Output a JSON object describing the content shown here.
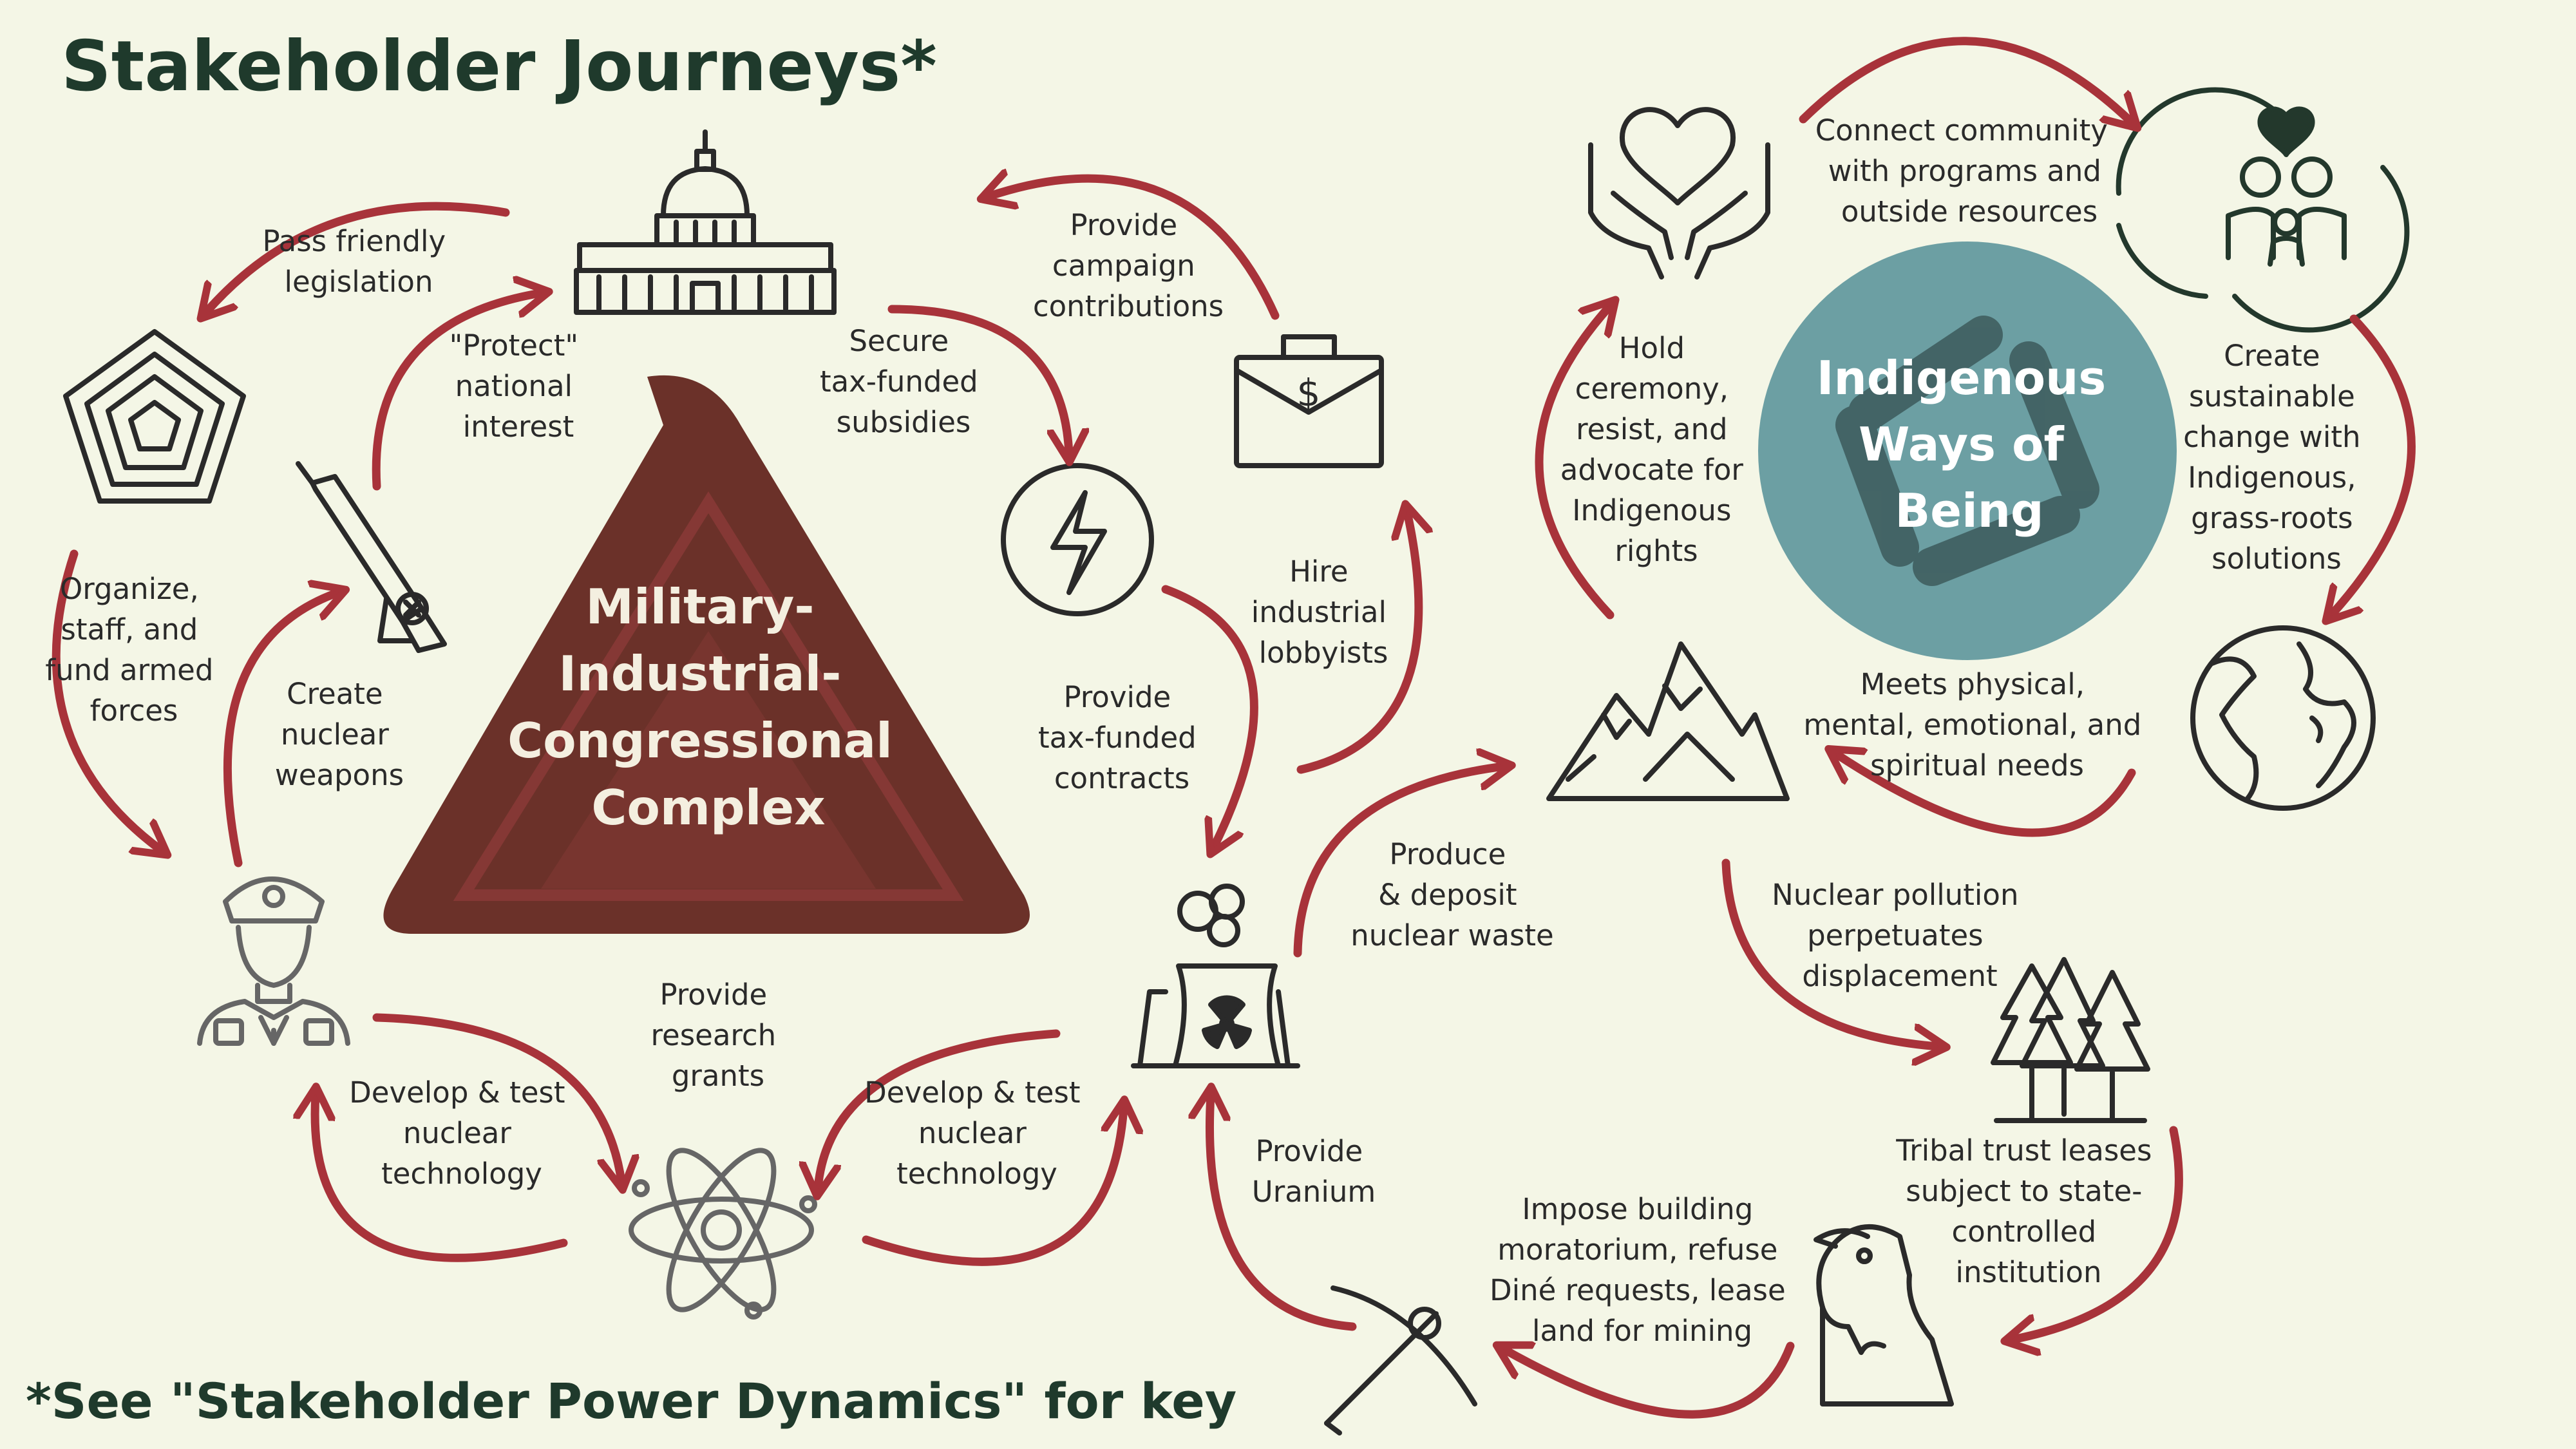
{
  "title": "Stakeholder Journeys*",
  "footnote": "*See \"Stakeholder Power Dynamics\" for key",
  "center": {
    "lines": [
      "Military-",
      "Industrial-",
      "Congressional",
      "Complex"
    ]
  },
  "indigenous": {
    "lines": [
      "Indigenous",
      "Ways of",
      "Being"
    ]
  },
  "colors": {
    "arrow": "#a8333a",
    "triangle": "#6b3129",
    "circle": "#6c9fa3",
    "background": "#f4f6e6",
    "title": "#1f3a2c"
  },
  "icons": [
    "capitol-icon",
    "pentagon-icon",
    "missile-icon",
    "soldier-icon",
    "atom-icon",
    "power-plant-icon",
    "lightning-icon",
    "briefcase-icon",
    "heart-hands-icon",
    "family-icon",
    "earth-icon",
    "mountains-icon",
    "trees-icon",
    "eagle-icon",
    "pickaxe-icon",
    "hands-circle-icon"
  ],
  "labels": {
    "pass_friendly": [
      "Pass friendly",
      "legislation"
    ],
    "protect": [
      "\"Protect\"",
      "national",
      "interest"
    ],
    "secure": [
      "Secure",
      "tax-funded",
      "subsidies"
    ],
    "campaign": [
      "Provide",
      "campaign",
      "contributions"
    ],
    "organize": [
      "Organize,",
      "staff, and",
      "fund armed",
      "forces"
    ],
    "create_nuclear": [
      "Create",
      "nuclear",
      "weapons"
    ],
    "hire": [
      "Hire",
      "industrial",
      "lobbyists"
    ],
    "contracts": [
      "Provide",
      "tax-funded",
      "contracts"
    ],
    "research": [
      "Provide",
      "research",
      "grants"
    ],
    "develop_left": [
      "Develop & test",
      "nuclear",
      "technology"
    ],
    "develop_right": [
      "Develop & test",
      "nuclear",
      "technology"
    ],
    "produce": [
      "Produce",
      "& deposit",
      "nuclear waste"
    ],
    "uranium": [
      "Provide",
      "Uranium"
    ],
    "impose": [
      "Impose building",
      "moratorium, refuse",
      "Diné requests, lease",
      "land for mining"
    ],
    "connect": [
      "Connect community",
      "with programs and",
      "outside resources"
    ],
    "hold": [
      "Hold",
      "ceremony,",
      "resist, and",
      "advocate for",
      "Indigenous",
      "rights"
    ],
    "create_sustainable": [
      "Create",
      "sustainable",
      "change with",
      "Indigenous,",
      "grass-roots",
      "solutions"
    ],
    "meets": [
      "Meets physical,",
      "mental, emotional, and",
      "spiritual needs"
    ],
    "pollution": [
      "Nuclear pollution",
      "perpetuates",
      "displacement"
    ],
    "tribal": [
      "Tribal trust leases",
      "subject to state-",
      "controlled",
      "institution"
    ]
  }
}
